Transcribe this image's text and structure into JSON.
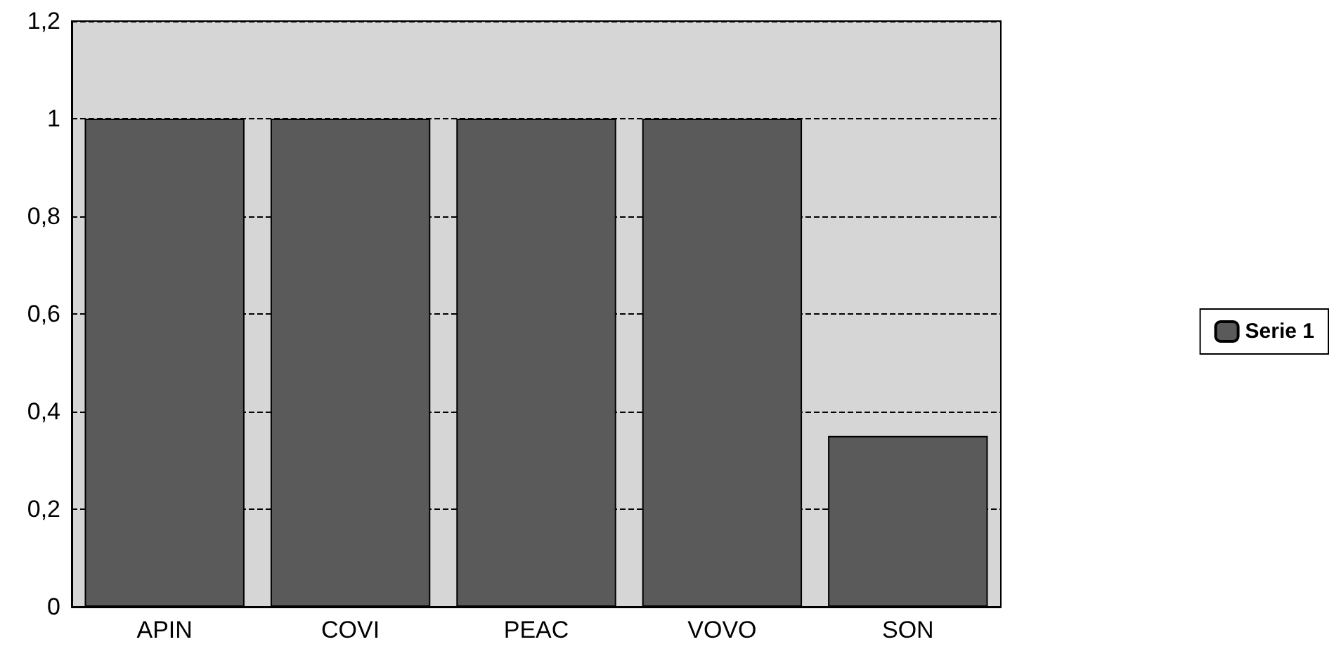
{
  "chart_data": {
    "type": "bar",
    "categories": [
      "APIN",
      "COVI",
      "PEAC",
      "VOVO",
      "SON"
    ],
    "series": [
      {
        "name": "Serie 1",
        "color": "#5a5a5a",
        "values": [
          1,
          1,
          1,
          1,
          0.35
        ]
      }
    ],
    "ylim": [
      0,
      1.2
    ],
    "yticks": [
      {
        "value": 0,
        "label": "0"
      },
      {
        "value": 0.2,
        "label": "0,2"
      },
      {
        "value": 0.4,
        "label": "0,4"
      },
      {
        "value": 0.6,
        "label": "0,6"
      },
      {
        "value": 0.8,
        "label": "0,8"
      },
      {
        "value": 1,
        "label": "1"
      },
      {
        "value": 1.2,
        "label": "1,2"
      }
    ],
    "grid": "y",
    "legend": "right"
  }
}
